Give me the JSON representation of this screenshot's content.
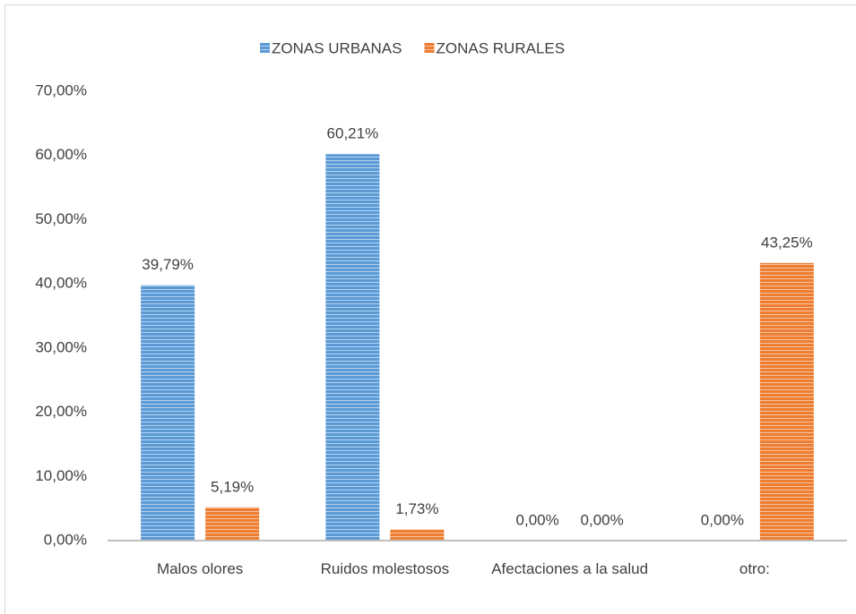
{
  "chart_data": {
    "type": "bar",
    "categories": [
      "Malos olores",
      "Ruidos molestosos",
      "Afectaciones a la salud",
      "otro:"
    ],
    "series": [
      {
        "name": "ZONAS URBANAS",
        "color": "#5b9bd5",
        "values": [
          39.79,
          60.21,
          0,
          0
        ],
        "value_labels": [
          "39,79%",
          "60,21%",
          "0,00%",
          "0,00%"
        ]
      },
      {
        "name": "ZONAS RURALES",
        "color": "#ed7d31",
        "values": [
          5.19,
          1.73,
          0,
          43.25
        ],
        "value_labels": [
          "5,19%",
          "1,73%",
          "0,00%",
          "43,25%"
        ]
      }
    ],
    "ylim": [
      0,
      70
    ],
    "yticks": [
      {
        "value": 0,
        "label": "0,00%"
      },
      {
        "value": 10,
        "label": "10,00%"
      },
      {
        "value": 20,
        "label": "20,00%"
      },
      {
        "value": 30,
        "label": "30,00%"
      },
      {
        "value": 40,
        "label": "40,00%"
      },
      {
        "value": 50,
        "label": "50,00%"
      },
      {
        "value": 60,
        "label": "60,00%"
      },
      {
        "value": 70,
        "label": "70,00%"
      }
    ],
    "grid": false,
    "legend": "top"
  }
}
